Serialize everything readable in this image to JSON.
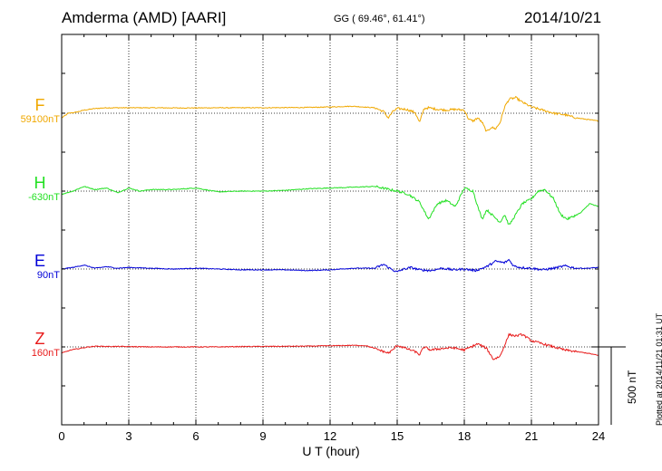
{
  "header": {
    "station": "Amderma (AMD)  [AARI]",
    "coords": "GG ( 69.46°,  61.41°)",
    "date": "2014/10/21"
  },
  "footer": {
    "credit": "Plotted at 2014/11/21 01:31  UT",
    "scale_label": "500 nT"
  },
  "chart_data": {
    "type": "line",
    "title": "Amderma (AMD)  [AARI]  2014/10/21",
    "xlabel": "U T (hour)",
    "ylabel": "",
    "xlim": [
      0,
      24
    ],
    "x_ticks": [
      "0",
      "3",
      "6",
      "9",
      "12",
      "15",
      "18",
      "21",
      "24"
    ],
    "grid": true,
    "scale_bar_nT": 500,
    "series": [
      {
        "name": "F",
        "baseline": "59100nT",
        "color": "#f0a800",
        "x": [
          0,
          0.3,
          0.6,
          0.8,
          1.0,
          1.5,
          2.0,
          3.0,
          4.0,
          5.0,
          6.0,
          7.0,
          8.0,
          9.0,
          10.0,
          11.0,
          12.0,
          13.0,
          14.0,
          14.4,
          14.6,
          14.8,
          15.0,
          15.4,
          15.8,
          16.0,
          16.2,
          16.4,
          16.8,
          17.2,
          17.6,
          18.0,
          18.2,
          18.4,
          18.6,
          18.8,
          19.0,
          19.2,
          19.4,
          19.6,
          19.8,
          20.0,
          20.3,
          20.6,
          21.0,
          21.5,
          22.0,
          22.5,
          23.0,
          23.5,
          24.0
        ],
        "values": [
          -30,
          0,
          5,
          12,
          20,
          30,
          35,
          35,
          35,
          34,
          34,
          35,
          35,
          35,
          36,
          37,
          40,
          45,
          35,
          10,
          -30,
          10,
          30,
          25,
          5,
          -60,
          30,
          35,
          25,
          20,
          25,
          20,
          -40,
          -50,
          -30,
          -60,
          -120,
          -90,
          -100,
          -60,
          40,
          90,
          100,
          70,
          40,
          20,
          0,
          -10,
          -30,
          -40,
          -50
        ]
      },
      {
        "name": "H",
        "baseline": "-630nT",
        "color": "#22e022",
        "x": [
          0,
          0.5,
          1.0,
          1.5,
          2.0,
          2.5,
          3.0,
          3.5,
          4.0,
          5.0,
          6.0,
          7.0,
          8.0,
          9.0,
          10.0,
          11.0,
          12.0,
          13.0,
          14.0,
          15.0,
          15.5,
          16.0,
          16.4,
          16.8,
          17.2,
          17.6,
          18.0,
          18.4,
          18.6,
          18.8,
          19.0,
          19.3,
          19.6,
          19.8,
          20.0,
          20.3,
          20.6,
          21.0,
          21.3,
          21.6,
          22.0,
          22.3,
          22.6,
          22.9,
          23.2,
          23.6,
          24.0
        ],
        "values": [
          -20,
          0,
          30,
          10,
          20,
          -10,
          20,
          0,
          10,
          10,
          20,
          -5,
          0,
          0,
          5,
          15,
          20,
          25,
          30,
          0,
          -20,
          -70,
          -180,
          -80,
          -60,
          -100,
          20,
          0,
          -100,
          -180,
          -120,
          -160,
          -200,
          -150,
          -220,
          -150,
          -80,
          -50,
          0,
          10,
          -50,
          -150,
          -180,
          -160,
          -140,
          -80,
          -100
        ]
      },
      {
        "name": "E",
        "baseline": "90nT",
        "color": "#0000d8",
        "x": [
          0,
          0.5,
          1.0,
          1.5,
          2.0,
          2.5,
          3.0,
          4.0,
          5.0,
          6.0,
          7.0,
          8.0,
          9.0,
          10.0,
          11.0,
          12.0,
          13.0,
          14.0,
          14.4,
          14.6,
          15.0,
          15.2,
          15.6,
          16.0,
          16.5,
          17.0,
          17.5,
          18.0,
          18.5,
          19.0,
          19.4,
          19.8,
          20.0,
          20.2,
          20.5,
          21.0,
          21.5,
          22.0,
          22.5,
          23.0,
          23.5,
          24.0
        ],
        "values": [
          0,
          10,
          25,
          5,
          15,
          5,
          10,
          5,
          0,
          5,
          0,
          -5,
          -5,
          -5,
          -10,
          -5,
          5,
          5,
          30,
          10,
          -20,
          -5,
          10,
          -5,
          -10,
          5,
          -5,
          0,
          -10,
          15,
          50,
          40,
          60,
          20,
          10,
          5,
          -5,
          5,
          20,
          5,
          5,
          10
        ]
      },
      {
        "name": "Z",
        "baseline": "160nT",
        "color": "#e81a1a",
        "x": [
          0,
          0.4,
          0.8,
          1.2,
          1.6,
          2.0,
          3.0,
          4.0,
          5.0,
          6.0,
          7.0,
          8.0,
          9.0,
          10.0,
          11.0,
          12.0,
          13.0,
          13.6,
          14.0,
          14.4,
          14.6,
          14.8,
          15.0,
          15.4,
          15.8,
          16.0,
          16.2,
          16.5,
          17.0,
          17.5,
          18.0,
          18.3,
          18.6,
          19.0,
          19.3,
          19.6,
          20.0,
          20.3,
          20.6,
          21.0,
          21.5,
          22.0,
          22.5,
          23.0,
          23.5,
          24.0
        ],
        "values": [
          -40,
          -20,
          -10,
          0,
          5,
          3,
          2,
          0,
          0,
          0,
          0,
          2,
          3,
          4,
          5,
          7,
          10,
          8,
          -10,
          -30,
          -40,
          -20,
          10,
          -10,
          -30,
          -50,
          0,
          -20,
          -10,
          -5,
          -20,
          0,
          20,
          -10,
          -80,
          -60,
          80,
          70,
          80,
          40,
          20,
          0,
          -20,
          -30,
          -40,
          -55
        ]
      }
    ]
  }
}
